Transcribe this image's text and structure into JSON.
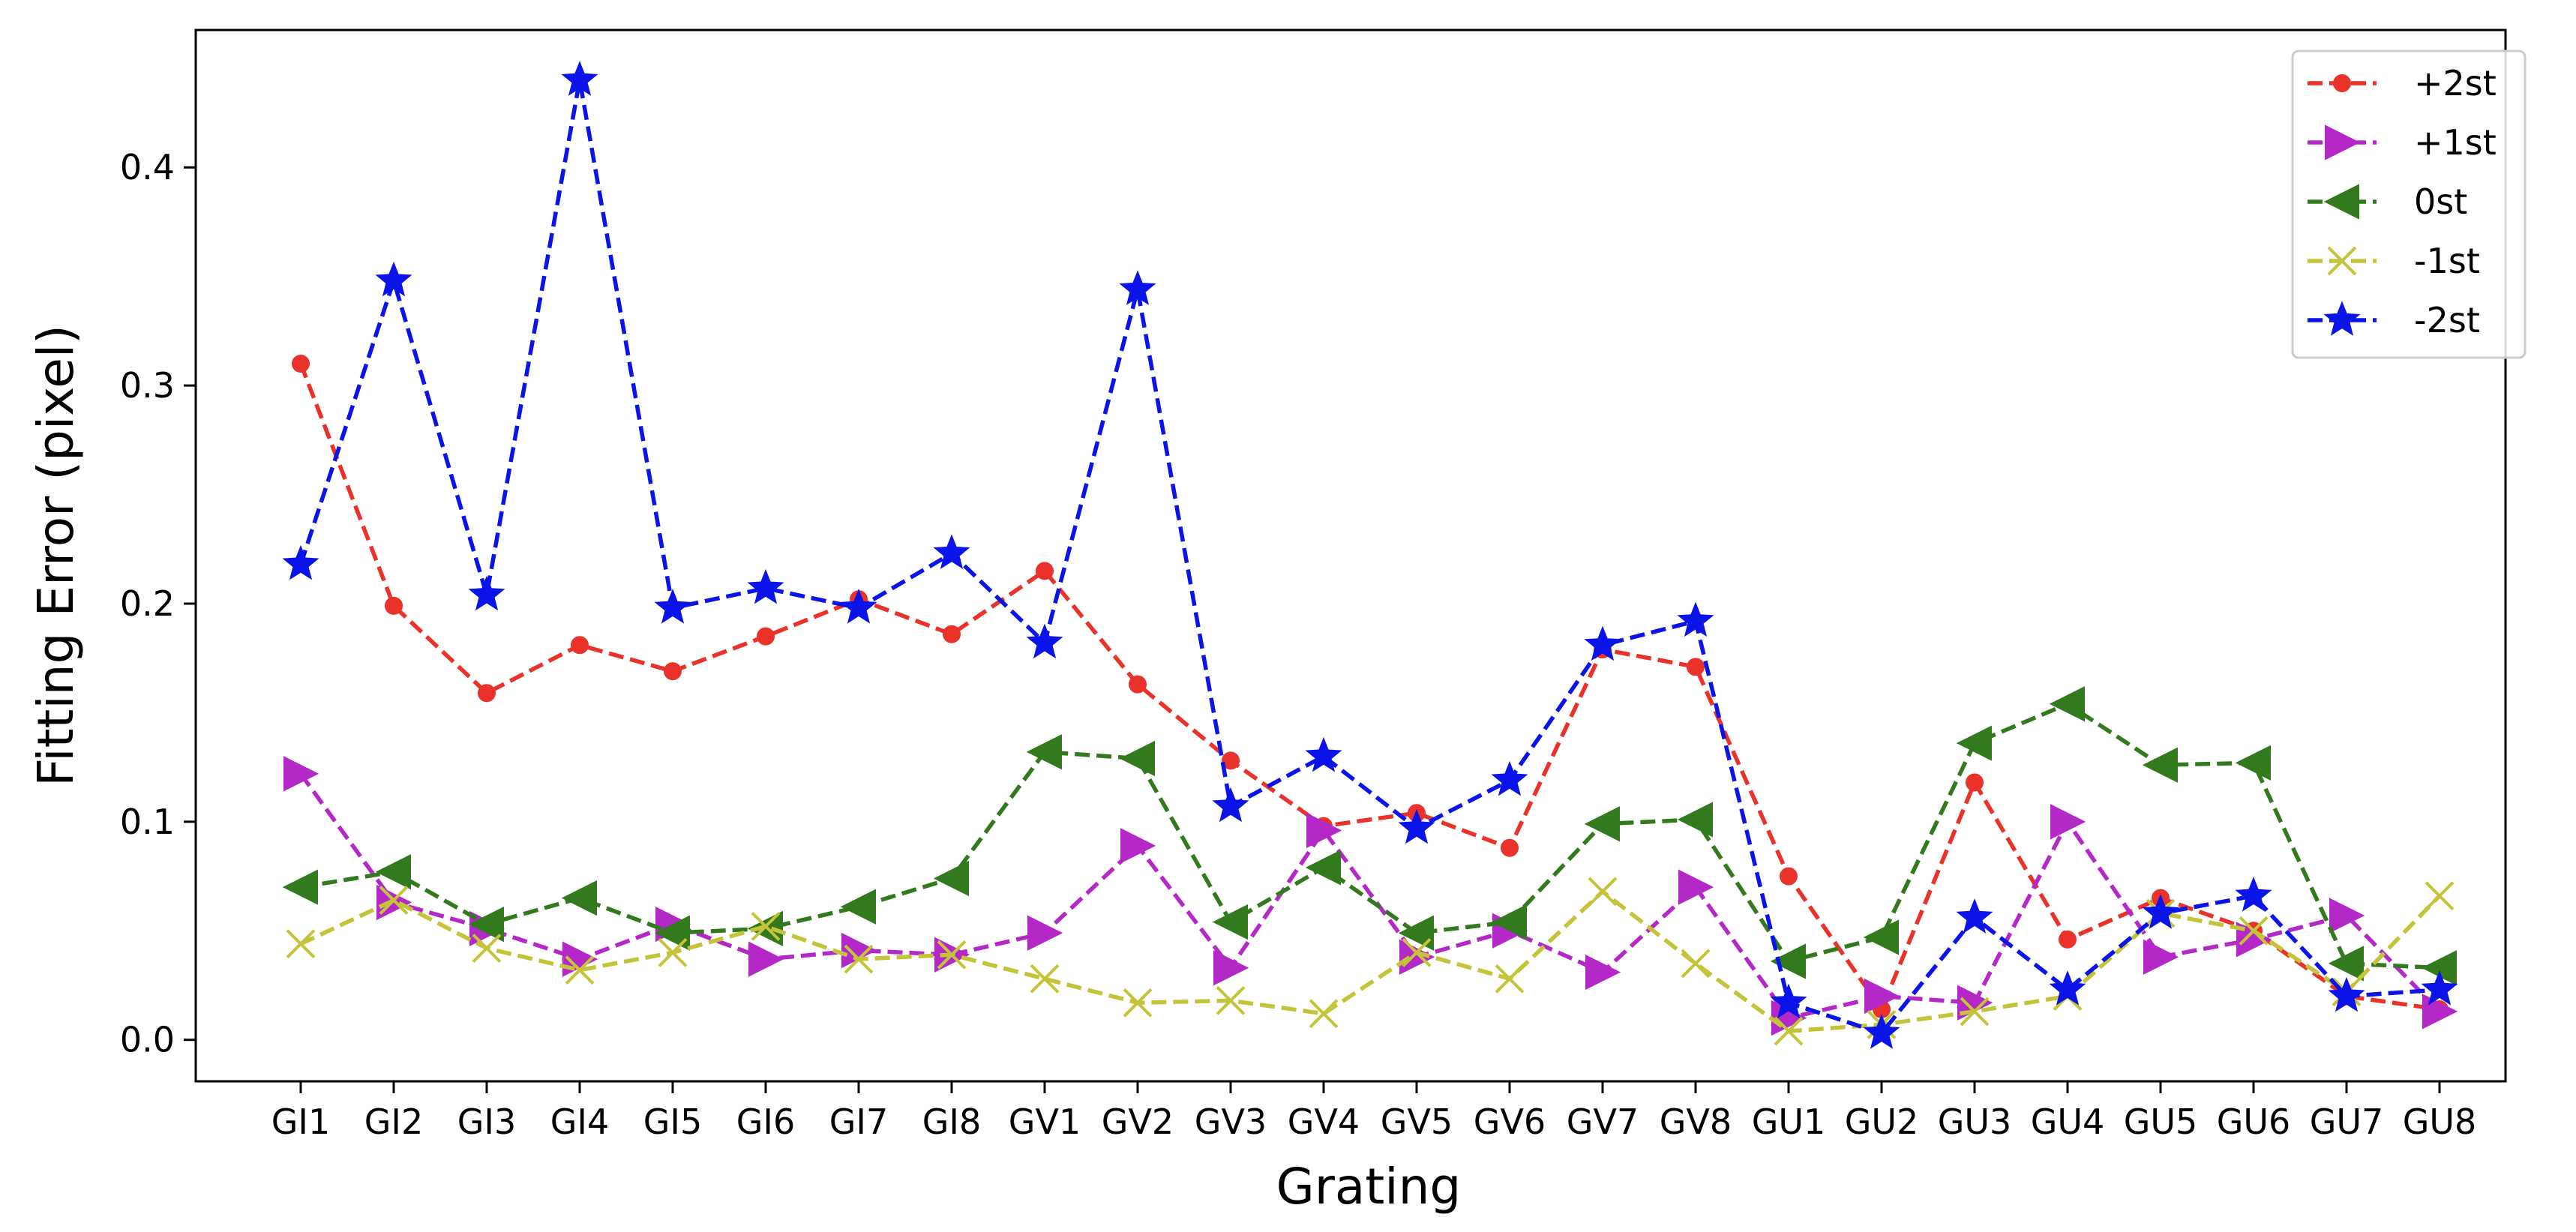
{
  "chart_data": {
    "type": "line",
    "xlabel": "Grating",
    "ylabel": "Fitting Error (pixel)",
    "ylim": [
      -0.019,
      0.463
    ],
    "yticks": [
      0.0,
      0.1,
      0.2,
      0.3,
      0.4
    ],
    "ytick_labels": [
      "0.0",
      "0.1",
      "0.2",
      "0.3",
      "0.4"
    ],
    "grid": false,
    "legend_position": "top-right",
    "categories": [
      "GI1",
      "GI2",
      "GI3",
      "GI4",
      "GI5",
      "GI6",
      "GI7",
      "GI8",
      "GV1",
      "GV2",
      "GV3",
      "GV4",
      "GV5",
      "GV6",
      "GV7",
      "GV8",
      "GU1",
      "GU2",
      "GU3",
      "GU4",
      "GU5",
      "GU6",
      "GU7",
      "GU8"
    ],
    "series": [
      {
        "name": "+2st",
        "color": "#e8322a",
        "marker": "circle",
        "values": [
          0.31,
          0.199,
          0.159,
          0.181,
          0.169,
          0.185,
          0.202,
          0.186,
          0.215,
          0.163,
          0.128,
          0.098,
          0.104,
          0.088,
          0.179,
          0.171,
          0.075,
          0.014,
          0.118,
          0.046,
          0.065,
          0.05,
          0.02,
          0.014
        ]
      },
      {
        "name": "+1st",
        "color": "#b428c8",
        "marker": "triangle-right",
        "values": [
          0.122,
          0.063,
          0.051,
          0.037,
          0.053,
          0.037,
          0.041,
          0.039,
          0.049,
          0.089,
          0.033,
          0.096,
          0.038,
          0.05,
          0.031,
          0.07,
          0.01,
          0.02,
          0.017,
          0.1,
          0.038,
          0.046,
          0.057,
          0.013
        ]
      },
      {
        "name": "0st",
        "color": "#337a1f",
        "marker": "triangle-left",
        "values": [
          0.07,
          0.077,
          0.053,
          0.065,
          0.049,
          0.051,
          0.061,
          0.074,
          0.132,
          0.129,
          0.054,
          0.079,
          0.049,
          0.054,
          0.099,
          0.101,
          0.036,
          0.047,
          0.136,
          0.154,
          0.126,
          0.127,
          0.035,
          0.033
        ]
      },
      {
        "name": "-1st",
        "color": "#c4c43a",
        "marker": "x",
        "values": [
          0.044,
          0.064,
          0.042,
          0.032,
          0.04,
          0.052,
          0.037,
          0.039,
          0.028,
          0.017,
          0.018,
          0.012,
          0.04,
          0.028,
          0.068,
          0.035,
          0.004,
          0.007,
          0.013,
          0.02,
          0.058,
          0.05,
          0.022,
          0.066
        ]
      },
      {
        "name": "-2st",
        "color": "#0a14e8",
        "marker": "star",
        "values": [
          0.218,
          0.348,
          0.204,
          0.44,
          0.198,
          0.207,
          0.198,
          0.223,
          0.182,
          0.344,
          0.107,
          0.13,
          0.097,
          0.119,
          0.181,
          0.192,
          0.017,
          0.003,
          0.056,
          0.023,
          0.058,
          0.066,
          0.02,
          0.023
        ]
      }
    ]
  }
}
